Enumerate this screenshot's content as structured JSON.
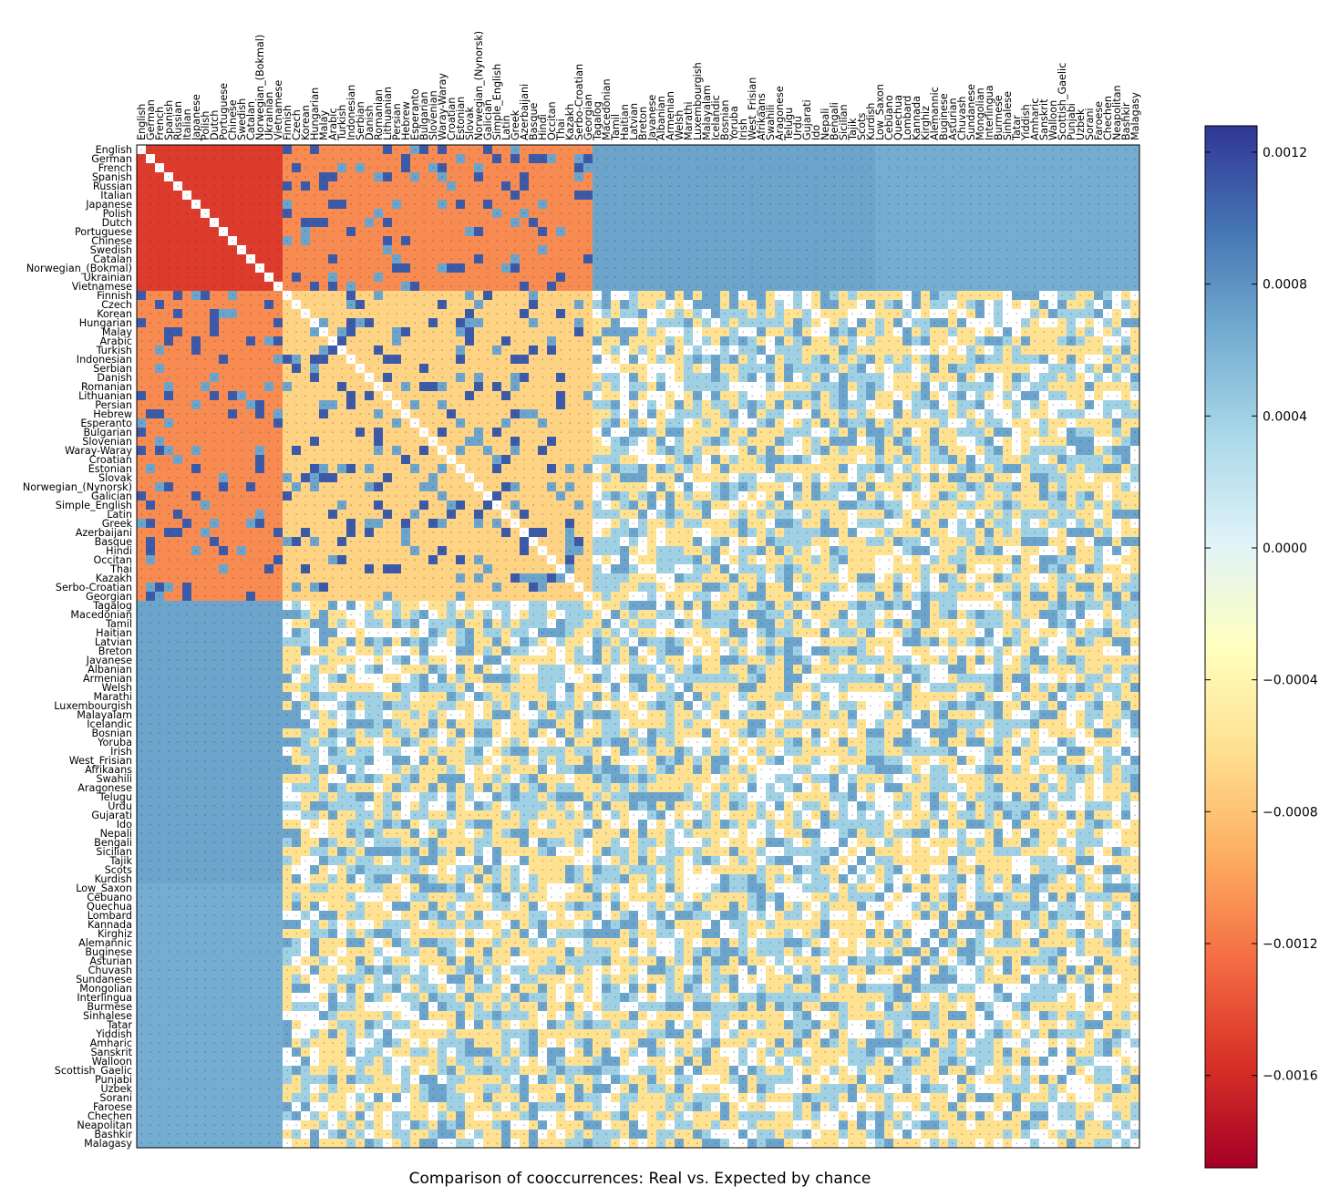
{
  "chart_data": {
    "type": "heatmap",
    "title": "Comparison of cooccurrences: Real vs. Expected by chance",
    "languages": [
      "English",
      "German",
      "French",
      "Spanish",
      "Russian",
      "Italian",
      "Japanese",
      "Polish",
      "Dutch",
      "Portuguese",
      "Chinese",
      "Swedish",
      "Catalan",
      "Norwegian_(Bokmal)",
      "Ukrainian",
      "Vietnamese",
      "Finnish",
      "Czech",
      "Korean",
      "Hungarian",
      "Malay",
      "Arabic",
      "Turkish",
      "Indonesian",
      "Serbian",
      "Danish",
      "Romanian",
      "Lithuanian",
      "Persian",
      "Hebrew",
      "Esperanto",
      "Bulgarian",
      "Slovenian",
      "Waray-Waray",
      "Croatian",
      "Estonian",
      "Slovak",
      "Norwegian_(Nynorsk)",
      "Galician",
      "Simple_English",
      "Latin",
      "Greek",
      "Azerbaijani",
      "Basque",
      "Hindi",
      "Occitan",
      "Thai",
      "Kazakh",
      "Serbo-Croatian",
      "Georgian",
      "Tagalog",
      "Macedonian",
      "Tamil",
      "Haitian",
      "Latvian",
      "Breton",
      "Javanese",
      "Albanian",
      "Armenian",
      "Welsh",
      "Marathi",
      "Luxembourgish",
      "Malayalam",
      "Icelandic",
      "Bosnian",
      "Yoruba",
      "Irish",
      "West_Frisian",
      "Afrikaans",
      "Swahili",
      "Aragonese",
      "Telugu",
      "Urdu",
      "Gujarati",
      "Ido",
      "Nepali",
      "Bengali",
      "Sicilian",
      "Tajik",
      "Scots",
      "Kurdish",
      "Low_Saxon",
      "Cebuano",
      "Quechua",
      "Lombard",
      "Kannada",
      "Kirghiz",
      "Alemannic",
      "Buginese",
      "Asturian",
      "Chuvash",
      "Sundanese",
      "Mongolian",
      "Interlingua",
      "Burmese",
      "Sinhalese",
      "Tatar",
      "Yiddish",
      "Amharic",
      "Sanskrit",
      "Walloon",
      "Scottish_Gaelic",
      "Punjabi",
      "Uzbek",
      "Sorani",
      "Faroese",
      "Chechen",
      "Neapolitan",
      "Bashkir",
      "Malagasy"
    ],
    "value_range": [
      -0.00188,
      0.00128
    ],
    "colormap": "RdYlBu",
    "colorbar_ticks": [
      "0.0012",
      "0.0008",
      "0.0004",
      "0.0000",
      "−0.0004",
      "−0.0008",
      "−0.0012",
      "−0.0016"
    ],
    "colorbar_tick_values": [
      0.0012,
      0.0008,
      0.0004,
      0.0,
      -0.0004,
      -0.0008,
      -0.0012,
      -0.0016
    ],
    "value_bands": {
      "strong_negative": -0.0015,
      "moderate_negative": -0.0011,
      "weak_negative": -0.0006,
      "weak_positive": 0.0004,
      "moderate_positive": 0.0007,
      "strong_positive": 0.0011
    },
    "diagonal": "blank",
    "note": "110x110 symmetric matrix of (real - expected) cooccurrence; cell values estimated visually"
  }
}
